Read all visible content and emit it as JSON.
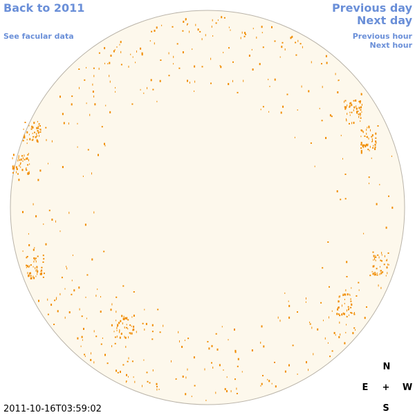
{
  "nav": {
    "back": "Back to 2011",
    "facular": "See facular data",
    "previous_day": "Previous day",
    "next_day": "Next day",
    "previous_hour": "Previous hour",
    "next_hour": "Next hour"
  },
  "timestamp": "2011-10-16T03:59:02",
  "compass": {
    "north": "N",
    "east": "E",
    "center": "+",
    "west": "W",
    "south": "S"
  }
}
